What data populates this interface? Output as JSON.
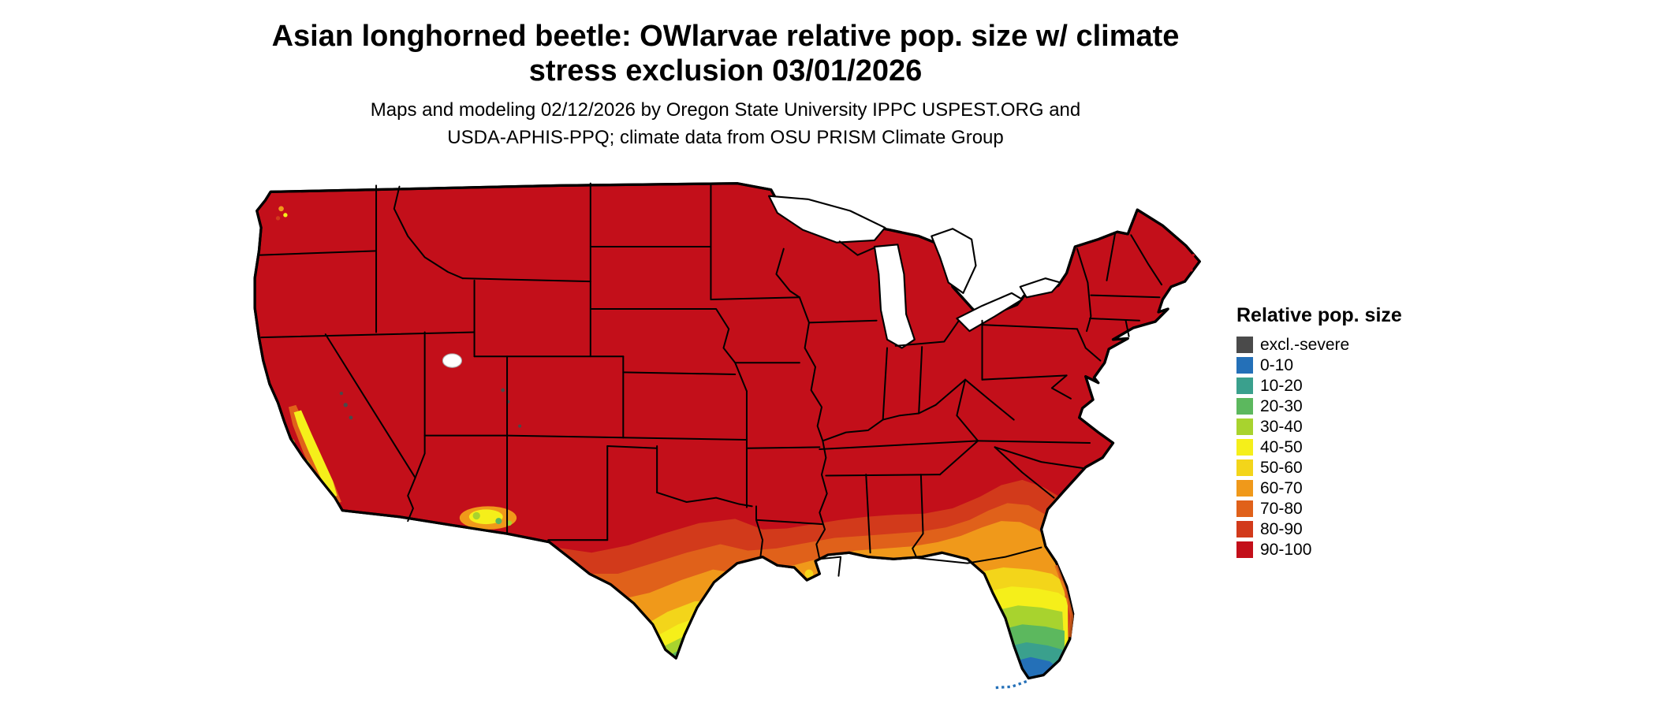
{
  "header": {
    "title_line1": "Asian longhorned beetle: OWlarvae relative pop. size w/ climate",
    "title_line2": "stress exclusion 03/01/2026",
    "subtitle_line1": "Maps and modeling 02/12/2026 by Oregon State University IPPC USPEST.ORG and",
    "subtitle_line2": "USDA-APHIS-PPQ; climate data from OSU PRISM Climate Group"
  },
  "map": {
    "description": "Contiguous United States choropleth of relative population size",
    "base_color": "#c30f1a",
    "border_color": "#000000",
    "water_color": "#ffffff"
  },
  "legend": {
    "title": "Relative pop. size",
    "items": [
      {
        "label": "excl.-severe",
        "color": "#4a4a4a"
      },
      {
        "label": "0-10",
        "color": "#2470b8"
      },
      {
        "label": "10-20",
        "color": "#3aa08d"
      },
      {
        "label": "20-30",
        "color": "#5cb85e"
      },
      {
        "label": "30-40",
        "color": "#a8d32e"
      },
      {
        "label": "40-50",
        "color": "#f5ef1a"
      },
      {
        "label": "50-60",
        "color": "#f3d51a"
      },
      {
        "label": "60-70",
        "color": "#f0991a"
      },
      {
        "label": "70-80",
        "color": "#e0611a"
      },
      {
        "label": "80-90",
        "color": "#d23a1b"
      },
      {
        "label": "90-100",
        "color": "#c30f1a"
      }
    ]
  }
}
